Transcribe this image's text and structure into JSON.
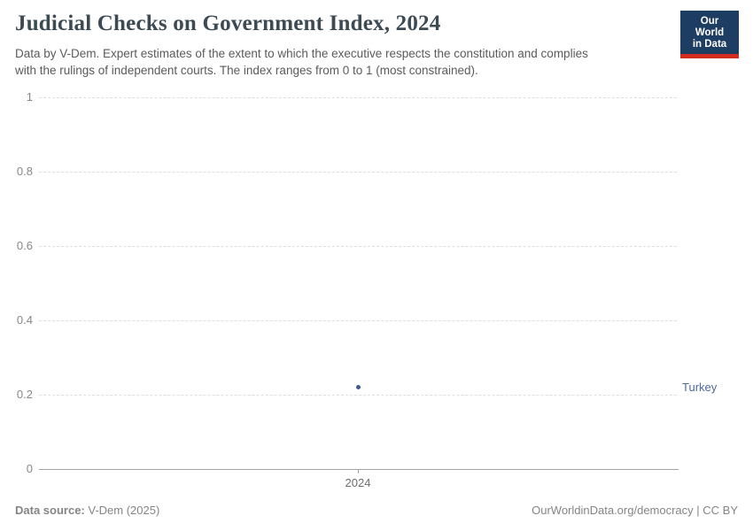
{
  "header": {
    "title": "Judicial Checks on Government Index, 2024",
    "subtitle_lines": [
      "Data by V-Dem. Expert estimates of the extent to which the executive respects the constitution and complies",
      "with the rulings of independent courts. The index ranges from 0 to 1 (most constrained)."
    ],
    "logo": {
      "line1": "Our World",
      "line2": "in Data"
    }
  },
  "chart_data": {
    "type": "scatter",
    "title": "Judicial Checks on Government Index, 2024",
    "x": [
      2024
    ],
    "xticks": [
      "2024"
    ],
    "series": [
      {
        "name": "Turkey",
        "values": [
          0.22
        ]
      }
    ],
    "xlabel": "",
    "ylabel": "",
    "ylim": [
      0,
      1
    ],
    "yticks": [
      0,
      0.2,
      0.4,
      0.6,
      0.8,
      1
    ],
    "grid": "horizontal-dashed",
    "legend_position": "label-right-of-plot",
    "colors": {
      "Turkey": "#3d5c87",
      "entity_label": "#4c6a9c",
      "gridline": "#dedede",
      "axis": "#a3a3a3"
    }
  },
  "footer": {
    "source_label": "Data source:",
    "source_value": "V-Dem (2025)",
    "credit": "OurWorldinData.org/democracy | CC BY"
  }
}
